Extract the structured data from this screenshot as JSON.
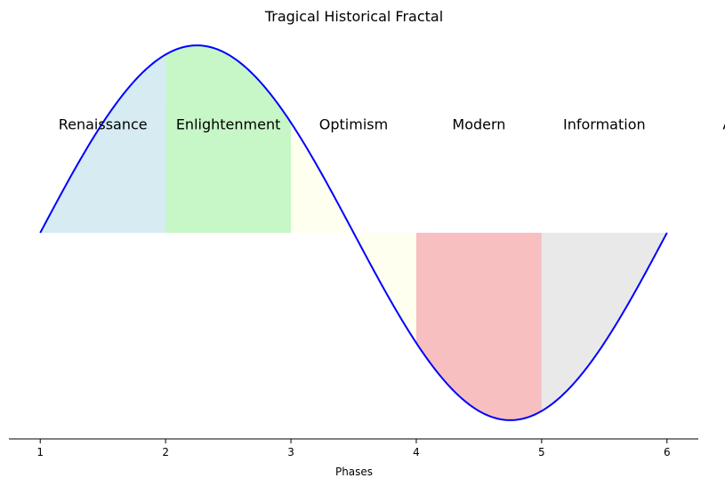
{
  "chart_data": {
    "type": "area",
    "title": "Tragical Historical Fractal",
    "xlabel": "Phases",
    "ylabel": "",
    "xlim": [
      0.75,
      6.25
    ],
    "ylim": [
      -1.1,
      1.1
    ],
    "x_ticks": [
      "1",
      "2",
      "3",
      "4",
      "5",
      "6"
    ],
    "curve": {
      "function": "sine",
      "x_start": 1,
      "x_end": 6,
      "peak": {
        "x": 2.25,
        "y": 1
      },
      "trough": {
        "x": 4.75,
        "y": -1
      },
      "color": "#0000ff"
    },
    "phases": [
      {
        "label": "Renaissance",
        "x_start": 1,
        "x_end": 2,
        "color": "#add8e6"
      },
      {
        "label": "Enlightenment",
        "x_start": 2,
        "x_end": 3,
        "color": "#90ee90"
      },
      {
        "label": "Optimism",
        "x_start": 3,
        "x_end": 4,
        "color": "#ffffe0"
      },
      {
        "label": "Modern",
        "x_start": 4,
        "x_end": 5,
        "color": "#f08080"
      },
      {
        "label": "Information",
        "x_start": 5,
        "x_end": 6,
        "color": "#d3d3d3"
      },
      {
        "label": "AI",
        "x_start": 6,
        "x_end": 7,
        "color": "#d3d3d3"
      }
    ],
    "label_y": 0.58,
    "grid": false,
    "legend": "none"
  }
}
